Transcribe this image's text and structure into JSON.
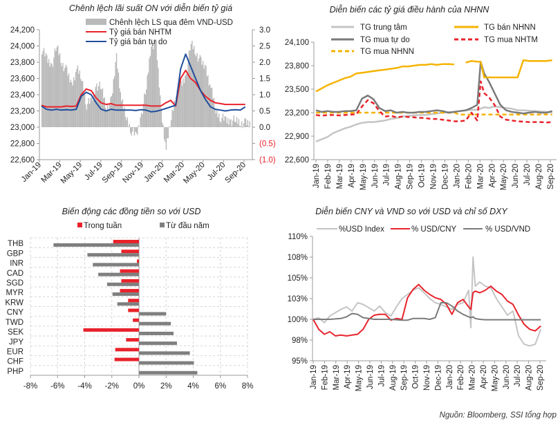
{
  "source_note": "Nguồn: Bloomberg, SSI tổng hợp",
  "chart_data": [
    {
      "id": "on_spread_vs_fx",
      "type": "line",
      "title": "Chênh lệch lãi suất ON với diễn biến tỷ giá",
      "x_ticks": [
        "Jan-19",
        "Mar-19",
        "May-19",
        "Jul-19",
        "Sep-19",
        "Nov-19",
        "Jan-20",
        "Mar-20",
        "May-20",
        "Jul-20",
        "Sep-20"
      ],
      "y_left": {
        "ticks": [
          "24,200",
          "24,000",
          "23,800",
          "23,600",
          "23,400",
          "23,200",
          "23,000",
          "22,800",
          "22,600"
        ],
        "range": [
          22600,
          24200
        ]
      },
      "y_right": {
        "ticks": [
          "3.0",
          "2.5",
          "2.0",
          "1.5",
          "1.0",
          "0.5",
          "0.0",
          "(0.5)",
          "(1.0)"
        ],
        "negative_tick_color": "#e8222b",
        "range": [
          -1.0,
          3.0
        ]
      },
      "legend": [
        {
          "label": "Chênh lệch LS qua đêm VND-USD",
          "style": "bar",
          "color": "#b9b9b9"
        },
        {
          "label": "Tỷ giá bán NHTM",
          "style": "line",
          "color": "#e8222b"
        },
        {
          "label": "Tỷ giá bán tự do",
          "style": "line",
          "color": "#1f4e9c"
        }
      ],
      "x_months": [
        0,
        0.5,
        1,
        1.5,
        2,
        2.5,
        3,
        3.5,
        4,
        4.5,
        5,
        5.5,
        6,
        6.5,
        7,
        7.5,
        8,
        8.5,
        9,
        9.5,
        10,
        10.5,
        11,
        11.5,
        12,
        12.5,
        13,
        13.5,
        14,
        14.5,
        15,
        15.5,
        16,
        16.5,
        17,
        17.5,
        18,
        18.5,
        19,
        19.5,
        20,
        20.5
      ],
      "series": [
        {
          "name": "Tỷ giá bán NHTM",
          "axis": "left",
          "color": "#e8222b",
          "values": [
            23270,
            23250,
            23250,
            23250,
            23250,
            23260,
            23255,
            23260,
            23400,
            23470,
            23450,
            23360,
            23300,
            23280,
            23290,
            23270,
            23270,
            23270,
            23270,
            23270,
            23270,
            23270,
            23260,
            23260,
            23260,
            23300,
            23330,
            23260,
            23600,
            23700,
            23600,
            23550,
            23450,
            23380,
            23330,
            23300,
            23290,
            23280,
            23280,
            23280,
            23280,
            23280
          ]
        },
        {
          "name": "Tỷ giá bán tự do",
          "axis": "left",
          "color": "#1f4e9c",
          "values": [
            23260,
            23220,
            23210,
            23220,
            23210,
            23215,
            23210,
            23220,
            23380,
            23430,
            23400,
            23300,
            23220,
            23200,
            23220,
            23210,
            23210,
            23210,
            23210,
            23205,
            23215,
            23210,
            23190,
            23195,
            23210,
            23230,
            23250,
            23270,
            23720,
            23900,
            23750,
            23600,
            23450,
            23340,
            23250,
            23220,
            23210,
            23200,
            23210,
            23215,
            23210,
            23250
          ]
        },
        {
          "name": "Chênh lệch LS qua đêm VND-USD",
          "axis": "right",
          "color": "#b9b9b9",
          "style": "bar",
          "values": [
            2.4,
            2.1,
            1.9,
            2.5,
            2.0,
            1.7,
            1.3,
            1.8,
            1.5,
            0.7,
            0.8,
            1.3,
            1.2,
            0.6,
            0.8,
            2.2,
            0.8,
            0.3,
            -0.1,
            -0.3,
            0.4,
            1.2,
            2.6,
            2.5,
            0.5,
            -0.7,
            0.3,
            1.1,
            1.3,
            1.6,
            2.6,
            2.3,
            2.0,
            1.8,
            1.2,
            0.5,
            0.3,
            0.2,
            0.2,
            0.2,
            0.15,
            0.1
          ]
        }
      ]
    },
    {
      "id": "sbv_rates",
      "type": "line",
      "title": "Diễn biến các tỷ giá điều hành của NHNN",
      "x_ticks": [
        "Jan-19",
        "Feb-19",
        "Mar-19",
        "Apr-19",
        "May-19",
        "Jun-19",
        "Jul-19",
        "Aug-19",
        "Sep-19",
        "Oct-19",
        "Nov-19",
        "Dec-19",
        "Jan-20",
        "Feb-20",
        "Mar-20",
        "Apr-20",
        "May-20",
        "Jun-20",
        "Jul-20",
        "Aug-20",
        "Sep-20"
      ],
      "y": {
        "ticks": [
          "24,100",
          "23,800",
          "23,500",
          "23,200",
          "22,900",
          "22,600"
        ],
        "range": [
          22600,
          24100
        ]
      },
      "legend": [
        {
          "label": "TG trung tâm",
          "style": "solid",
          "color": "#c4c4c4"
        },
        {
          "label": "TG bán NHNN",
          "style": "solid",
          "color": "#f5b300"
        },
        {
          "label": "TG mua tự do",
          "style": "solid",
          "color": "#7a7a7a"
        },
        {
          "label": "TG mua NHTM",
          "style": "dashed",
          "color": "#e8222b"
        },
        {
          "label": "TG mua NHNN",
          "style": "dashed",
          "color": "#f5b300"
        }
      ],
      "x_months": [
        0,
        0.5,
        1,
        1.5,
        2,
        2.5,
        3,
        3.5,
        4,
        4.5,
        5,
        5.5,
        6,
        6.5,
        7,
        7.5,
        8,
        8.5,
        9,
        9.5,
        10,
        10.5,
        11,
        11.5,
        12,
        12.5,
        13,
        13.5,
        14,
        14.3,
        14.6,
        15,
        15.5,
        16,
        16.5,
        17,
        17.5,
        18,
        18.5,
        19,
        19.5,
        20,
        20.5
      ],
      "series": [
        {
          "name": "TG trung tâm",
          "color": "#c4c4c4",
          "dashed": false,
          "values": [
            22830,
            22860,
            22890,
            22940,
            22970,
            23000,
            23020,
            23050,
            23070,
            23080,
            23080,
            23090,
            23100,
            23120,
            23130,
            23150,
            23160,
            23165,
            23170,
            23170,
            23180,
            23190,
            23200,
            23205,
            23210,
            23220,
            23230,
            23235,
            23240,
            23250,
            23270,
            23260,
            23280,
            23270,
            23260,
            23250,
            23230,
            23230,
            23225,
            23220,
            23215,
            23210,
            23200
          ]
        },
        {
          "name": "TG bán NHNN",
          "color": "#f5b300",
          "dashed": false,
          "values": [
            23470,
            23510,
            23550,
            23580,
            23610,
            23640,
            23660,
            23700,
            23710,
            23720,
            23730,
            23740,
            23750,
            23760,
            23770,
            23790,
            23790,
            23800,
            23810,
            23810,
            23820,
            23810,
            23820,
            23820,
            23815,
            null,
            23840,
            23860,
            23850,
            23850,
            23650,
            23650,
            23650,
            23650,
            23650,
            23650,
            23650,
            23870,
            23860,
            23860,
            23860,
            23860,
            23870
          ]
        },
        {
          "name": "TG mua tự do",
          "color": "#7a7a7a",
          "dashed": false,
          "values": [
            23230,
            23210,
            23220,
            23210,
            23210,
            23220,
            23220,
            23230,
            23380,
            23420,
            23370,
            23260,
            23220,
            23230,
            23200,
            23210,
            23200,
            23200,
            23210,
            23210,
            23220,
            23230,
            23220,
            23200,
            23210,
            23220,
            23230,
            23260,
            23300,
            23850,
            23700,
            23600,
            23450,
            23300,
            23230,
            23210,
            23200,
            23190,
            23200,
            23210,
            23200,
            23200,
            23220
          ]
        },
        {
          "name": "TG mua NHTM",
          "color": "#e8222b",
          "dashed": true,
          "values": [
            23170,
            23160,
            23170,
            23170,
            23165,
            23170,
            23175,
            23180,
            23280,
            23360,
            23320,
            23220,
            23150,
            23160,
            23140,
            23150,
            23145,
            23140,
            23135,
            23130,
            23120,
            23120,
            23110,
            23100,
            23090,
            23090,
            23100,
            23200,
            23100,
            23600,
            23450,
            23400,
            23300,
            23150,
            23110,
            23100,
            23090,
            23085,
            23080,
            23080,
            23080,
            23075,
            23080
          ]
        },
        {
          "name": "TG mua NHNN",
          "color": "#f5b300",
          "dashed": true,
          "values": [
            23200,
            23200,
            23200,
            23200,
            23200,
            23200,
            23200,
            23200,
            23200,
            23200,
            23200,
            23200,
            23200,
            23200,
            23200,
            23200,
            23200,
            23200,
            23200,
            23200,
            23200,
            23200,
            23200,
            23200,
            23200,
            23175,
            23175,
            23175,
            23175,
            23175,
            23175,
            23175,
            23175,
            23175,
            23175,
            23175,
            23175,
            23175,
            23175,
            23175,
            23175,
            23175,
            23175
          ]
        }
      ]
    },
    {
      "id": "currencies_vs_usd",
      "type": "bar",
      "orientation": "horizontal",
      "title": "Biến động các đồng tiền so với USD",
      "categories": [
        "THB",
        "GBP",
        "INR",
        "CAD",
        "SGD",
        "MYR",
        "KRW",
        "CNY",
        "TWD",
        "SEK",
        "JPY",
        "EUR",
        "CHF",
        "PHP"
      ],
      "series": [
        {
          "name": "Trong tuần",
          "color": "#e8222b",
          "values": [
            -1.9,
            -1.3,
            -0.15,
            -1.4,
            -1.3,
            -1.4,
            -0.8,
            -0.8,
            -0.45,
            -4.1,
            -0.95,
            -1.75,
            -1.8,
            0.0
          ]
        },
        {
          "name": "Từ đầu năm",
          "color": "#7f7f7f",
          "values": [
            -6.3,
            -3.8,
            -3.4,
            -3.0,
            -2.35,
            -1.95,
            -1.6,
            2.0,
            2.35,
            2.55,
            2.8,
            3.75,
            4.05,
            4.3
          ]
        }
      ],
      "x_ticks": [
        "-8%",
        "-6%",
        "-4%",
        "-2%",
        "0%",
        "2%",
        "4%",
        "6%",
        "8%"
      ],
      "xlim": [
        -8,
        8
      ],
      "unit": "%",
      "grid": true,
      "legend_position": "top"
    },
    {
      "id": "cny_vnd_dxy",
      "type": "line",
      "title": "Diễn biến CNY và VND so với USD và chỉ số DXY",
      "x_ticks": [
        "Jan-19",
        "Feb-19",
        "Mar-19",
        "Apr-19",
        "May-19",
        "Jun-19",
        "Jul-19",
        "Aug-19",
        "Sep-19",
        "Oct-19",
        "Nov-19",
        "Dec-19",
        "Jan-20",
        "Feb-20",
        "Mar-20",
        "Apr-20",
        "May-20",
        "Jun-20",
        "Jul-20",
        "Aug-20",
        "Sep-20"
      ],
      "y": {
        "ticks": [
          "110%",
          "108%",
          "105%",
          "103%",
          "100%",
          "98%",
          "95%"
        ],
        "range": [
          95,
          110
        ]
      },
      "legend": [
        {
          "label": "%USD Index",
          "color": "#c4c4c4"
        },
        {
          "label": "% USD/CNY",
          "color": "#e8222b"
        },
        {
          "label": "% USD/VND",
          "color": "#7a7a7a"
        }
      ],
      "x_months": [
        0,
        0.5,
        1,
        1.5,
        2,
        2.5,
        3,
        3.5,
        4,
        4.5,
        5,
        5.5,
        6,
        6.5,
        7,
        7.5,
        8,
        8.5,
        9,
        9.5,
        10,
        10.5,
        11,
        11.5,
        12,
        12.5,
        13,
        13.5,
        14,
        14.2,
        14.4,
        14.6,
        15,
        15.5,
        16,
        16.5,
        17,
        17.5,
        18,
        18.5,
        19,
        19.5,
        20,
        20.5
      ],
      "series": [
        {
          "name": "%USD Index",
          "color": "#c4c4c4",
          "values": [
            100.0,
            100.2,
            99.6,
            100.4,
            100.8,
            101.2,
            101.5,
            101.0,
            102.0,
            101.8,
            101.4,
            101.0,
            101.6,
            100.8,
            100.4,
            101.5,
            102.5,
            103.0,
            103.5,
            103.8,
            103.2,
            102.5,
            102.0,
            101.8,
            101.5,
            101.2,
            101.8,
            102.0,
            103.5,
            99.0,
            107.5,
            104.0,
            104.5,
            104.0,
            103.8,
            102.5,
            101.5,
            100.5,
            101.0,
            98.0,
            97.0,
            96.8,
            97.0,
            98.8
          ]
        },
        {
          "name": "% USD/CNY",
          "color": "#e8222b",
          "values": [
            100.0,
            98.8,
            98.2,
            98.5,
            98.0,
            98.1,
            98.0,
            98.1,
            98.2,
            98.8,
            100.0,
            100.5,
            100.6,
            100.6,
            99.9,
            100.1,
            100.0,
            102.6,
            103.6,
            104.2,
            103.5,
            103.0,
            102.6,
            102.4,
            101.8,
            100.6,
            102.0,
            102.4,
            101.5,
            101.2,
            103.2,
            103.4,
            103.2,
            103.5,
            104.0,
            103.4,
            103.0,
            102.2,
            101.8,
            100.5,
            99.4,
            98.8,
            98.6,
            99.2
          ]
        },
        {
          "name": "% USD/VND",
          "color": "#7a7a7a",
          "values": [
            100.0,
            100.0,
            100.0,
            100.0,
            100.05,
            100.1,
            100.3,
            100.7,
            100.6,
            100.2,
            100.1,
            100.0,
            100.0,
            100.0,
            100.0,
            99.95,
            99.9,
            99.9,
            100.1,
            100.1,
            100.1,
            100.0,
            100.2,
            102.0,
            102.0,
            101.6,
            101.0,
            100.6,
            100.3,
            100.2,
            100.3,
            100.1,
            100.0,
            99.95,
            99.95,
            99.95,
            99.95,
            99.95,
            99.95,
            99.95,
            99.95,
            99.95,
            99.95,
            99.95
          ]
        }
      ]
    }
  ]
}
